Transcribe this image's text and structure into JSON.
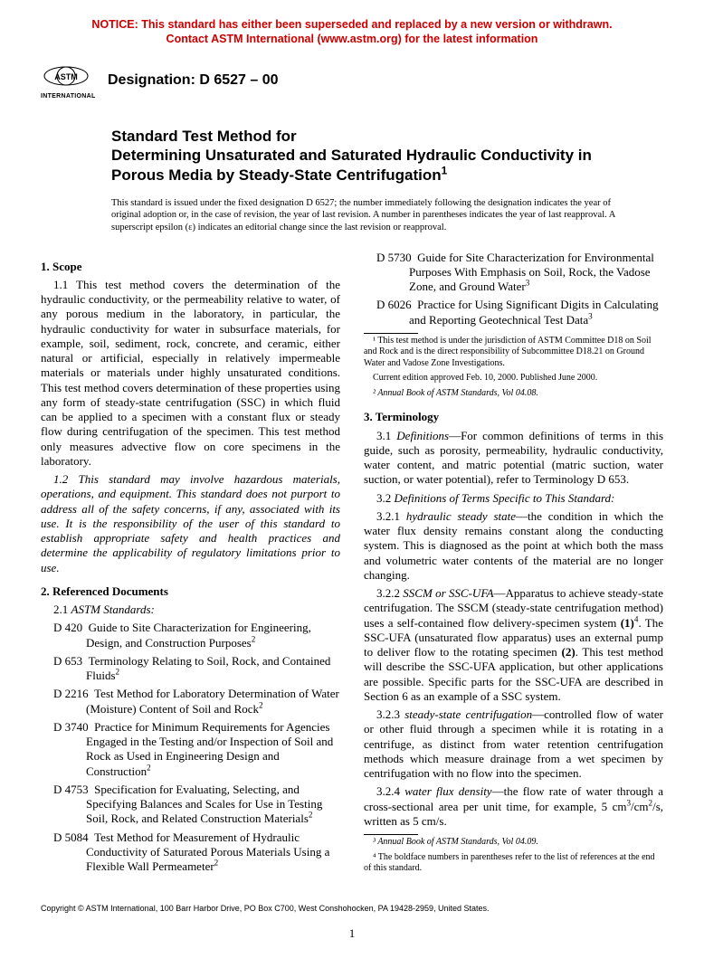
{
  "notice": {
    "line1": "NOTICE: This standard has either been superseded and replaced by a new version or withdrawn.",
    "line2": "Contact ASTM International (www.astm.org) for the latest information",
    "color": "#cc0000"
  },
  "logo_label": "INTERNATIONAL",
  "designation": "Designation: D 6527 – 00",
  "title_block": {
    "line1": "Standard Test Method for",
    "line2": "Determining Unsaturated and Saturated Hydraulic Conductivity in Porous Media by Steady-State Centrifugation",
    "sup": "1"
  },
  "issued_note": "This standard is issued under the fixed designation D 6527; the number immediately following the designation indicates the year of original adoption or, in the case of revision, the year of last revision. A number in parentheses indicates the year of last reapproval. A superscript epsilon (ε) indicates an editorial change since the last revision or reapproval.",
  "sections": {
    "scope_head": "1. Scope",
    "scope_1_1": "1.1 This test method covers the determination of the hydraulic conductivity, or the permeability relative to water, of any porous medium in the laboratory, in particular, the hydraulic conductivity for water in subsurface materials, for example, soil, sediment, rock, concrete, and ceramic, either natural or artificial, especially in relatively impermeable materials or materials under highly unsaturated conditions. This test method covers determination of these properties using any form of steady-state centrifugation (SSC) in which fluid can be applied to a specimen with a constant flux or steady flow during centrifugation of the specimen. This test method only measures advective flow on core specimens in the laboratory.",
    "scope_1_2": "1.2 This standard may involve hazardous materials, operations, and equipment. This standard does not purport to address all of the safety concerns, if any, associated with its use. It is the responsibility of the user of this standard to establish appropriate safety and health practices and determine the applicability of regulatory limitations prior to use.",
    "ref_head": "2. Referenced Documents",
    "ref_sub": "2.1 ASTM Standards:",
    "refs": [
      {
        "code": "D 420",
        "text": "Guide to Site Characterization for Engineering, Design, and Construction Purposes",
        "sup": "2"
      },
      {
        "code": "D 653",
        "text": "Terminology Relating to Soil, Rock, and Contained Fluids",
        "sup": "2"
      },
      {
        "code": "D 2216",
        "text": "Test Method for Laboratory Determination of Water (Moisture) Content of Soil and Rock",
        "sup": "2"
      },
      {
        "code": "D 3740",
        "text": "Practice for Minimum Requirements for Agencies Engaged in the Testing and/or Inspection of Soil and Rock as Used in Engineering Design and Construction",
        "sup": "2"
      },
      {
        "code": "D 4753",
        "text": "Specification for Evaluating, Selecting, and Specifying Balances and Scales for Use in Testing Soil, Rock, and Related Construction Materials",
        "sup": "2"
      },
      {
        "code": "D 5084",
        "text": "Test Method for Measurement of Hydraulic Conductivity of Saturated Porous Materials Using a Flexible Wall Permeameter",
        "sup": "2"
      },
      {
        "code": "D 5730",
        "text": "Guide for Site Characterization for Environmental Purposes With Emphasis on Soil, Rock, the Vadose Zone, and Ground Water",
        "sup": "3"
      },
      {
        "code": "D 6026",
        "text": "Practice for Using Significant Digits in Calculating and Reporting Geotechnical Test Data",
        "sup": "3"
      }
    ],
    "term_head": "3. Terminology",
    "term_3_1_a": "3.1 ",
    "term_3_1_b": "Definitions",
    "term_3_1_c": "—For common definitions of terms in this guide, such as porosity, permeability, hydraulic conductivity, water content, and matric potential (matric suction, water suction, or water potential), refer to Terminology D 653.",
    "term_3_2": "Definitions of Terms Specific to This Standard:",
    "term_3_2_pre": "3.2 ",
    "term_3_2_1_a": "3.2.1 ",
    "term_3_2_1_b": "hydraulic steady state",
    "term_3_2_1_c": "—the condition in which the water flux density remains constant along the conducting system. This is diagnosed as the point at which both the mass and volumetric water contents of the material are no longer changing.",
    "term_3_2_2_a": "3.2.2 ",
    "term_3_2_2_b": "SSCM or SSC-UFA",
    "term_3_2_2_c": "—Apparatus to achieve steady-state centrifugation. The SSCM (steady-state centrifugation method) uses a self-contained flow delivery-specimen system ",
    "term_3_2_2_d": "(1)",
    "term_3_2_2_sup": "4",
    "term_3_2_2_e": ". The SSC-UFA (unsaturated flow apparatus) uses an external pump to deliver flow to the rotating specimen ",
    "term_3_2_2_f": "(2)",
    "term_3_2_2_g": ". This test method will describe the SSC-UFA application, but other applications are possible. Specific parts for the SSC-UFA are described in Section 6 as an example of a SSC system.",
    "term_3_2_3_a": "3.2.3 ",
    "term_3_2_3_b": "steady-state centrifugation",
    "term_3_2_3_c": "—controlled flow of water or other fluid through a specimen while it is rotating in a centrifuge, as distinct from water retention centrifugation methods which measure drainage from a wet specimen by centrifugation with no flow into the specimen.",
    "term_3_2_4_a": "3.2.4 ",
    "term_3_2_4_b": "water flux density",
    "term_3_2_4_c": "—the flow rate of water through a cross-sectional area per unit time, for example, 5 cm",
    "term_3_2_4_d": "/cm",
    "term_3_2_4_e": "/s, written as 5 cm/s."
  },
  "footnotes_left": [
    "¹ This test method is under the jurisdiction of ASTM Committee D18 on Soil and Rock and is the direct responsibility of Subcommittee D18.21 on Ground Water and Vadose Zone Investigations.",
    "Current edition approved Feb. 10, 2000. Published June 2000.",
    "² Annual Book of ASTM Standards, Vol 04.08."
  ],
  "footnotes_right": [
    "³ Annual Book of ASTM Standards, Vol 04.09.",
    "⁴ The boldface numbers in parentheses refer to the list of references at the end of this standard."
  ],
  "copyright": "Copyright © ASTM International, 100 Barr Harbor Drive, PO Box C700, West Conshohocken, PA 19428-2959, United States.",
  "page_number": "1"
}
